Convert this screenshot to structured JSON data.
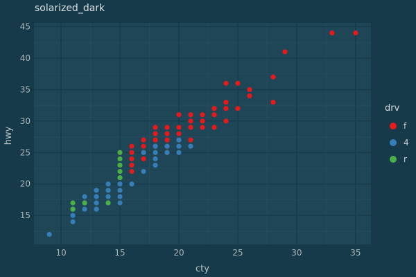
{
  "chart_data": {
    "type": "scatter",
    "title": "solarized_dark",
    "xlabel": "cty",
    "ylabel": "hwy",
    "xlim": [
      7.7,
      36.3
    ],
    "ylim": [
      10.4,
      45.6
    ],
    "xticks": [
      10,
      15,
      20,
      25,
      30,
      35
    ],
    "yticks": [
      15,
      20,
      25,
      30,
      35,
      40,
      45
    ],
    "grid": true,
    "legend": {
      "title": "drv",
      "position": "right"
    },
    "series": [
      {
        "name": "f",
        "color": "#e41a1c",
        "points": [
          [
            16,
            26
          ],
          [
            16,
            25
          ],
          [
            16,
            24
          ],
          [
            16,
            23
          ],
          [
            16,
            22
          ],
          [
            17,
            27
          ],
          [
            17,
            26
          ],
          [
            17,
            25
          ],
          [
            17,
            24
          ],
          [
            18,
            29
          ],
          [
            18,
            28
          ],
          [
            18,
            27
          ],
          [
            18,
            26
          ],
          [
            19,
            29
          ],
          [
            19,
            28
          ],
          [
            19,
            27
          ],
          [
            19,
            26
          ],
          [
            19,
            25
          ],
          [
            20,
            31
          ],
          [
            20,
            29
          ],
          [
            20,
            28
          ],
          [
            20,
            27
          ],
          [
            21,
            31
          ],
          [
            21,
            30
          ],
          [
            21,
            29
          ],
          [
            21,
            27
          ],
          [
            22,
            31
          ],
          [
            22,
            30
          ],
          [
            22,
            29
          ],
          [
            23,
            32
          ],
          [
            23,
            31
          ],
          [
            23,
            29
          ],
          [
            24,
            36
          ],
          [
            24,
            33
          ],
          [
            24,
            32
          ],
          [
            24,
            30
          ],
          [
            25,
            36
          ],
          [
            25,
            32
          ],
          [
            26,
            35
          ],
          [
            26,
            34
          ],
          [
            28,
            37
          ],
          [
            28,
            33
          ],
          [
            29,
            41
          ],
          [
            33,
            44
          ],
          [
            35,
            44
          ]
        ]
      },
      {
        "name": "4",
        "color": "#377eb8",
        "points": [
          [
            9,
            12
          ],
          [
            11,
            16
          ],
          [
            11,
            15
          ],
          [
            11,
            14
          ],
          [
            12,
            18
          ],
          [
            12,
            17
          ],
          [
            12,
            16
          ],
          [
            13,
            19
          ],
          [
            13,
            18
          ],
          [
            13,
            17
          ],
          [
            13,
            16
          ],
          [
            14,
            20
          ],
          [
            14,
            19
          ],
          [
            14,
            18
          ],
          [
            14,
            17
          ],
          [
            15,
            21
          ],
          [
            15,
            20
          ],
          [
            15,
            19
          ],
          [
            15,
            18
          ],
          [
            15,
            17
          ],
          [
            16,
            20
          ],
          [
            17,
            25
          ],
          [
            17,
            22
          ],
          [
            18,
            26
          ],
          [
            18,
            25
          ],
          [
            18,
            24
          ],
          [
            18,
            23
          ],
          [
            19,
            26
          ],
          [
            19,
            25
          ],
          [
            20,
            27
          ],
          [
            20,
            26
          ],
          [
            20,
            25
          ],
          [
            21,
            26
          ]
        ]
      },
      {
        "name": "r",
        "color": "#4daf4a",
        "points": [
          [
            11,
            17
          ],
          [
            11,
            16
          ],
          [
            12,
            17
          ],
          [
            14,
            17
          ],
          [
            15,
            25
          ],
          [
            15,
            24
          ],
          [
            15,
            23
          ],
          [
            15,
            22
          ],
          [
            15,
            21
          ]
        ]
      }
    ]
  }
}
